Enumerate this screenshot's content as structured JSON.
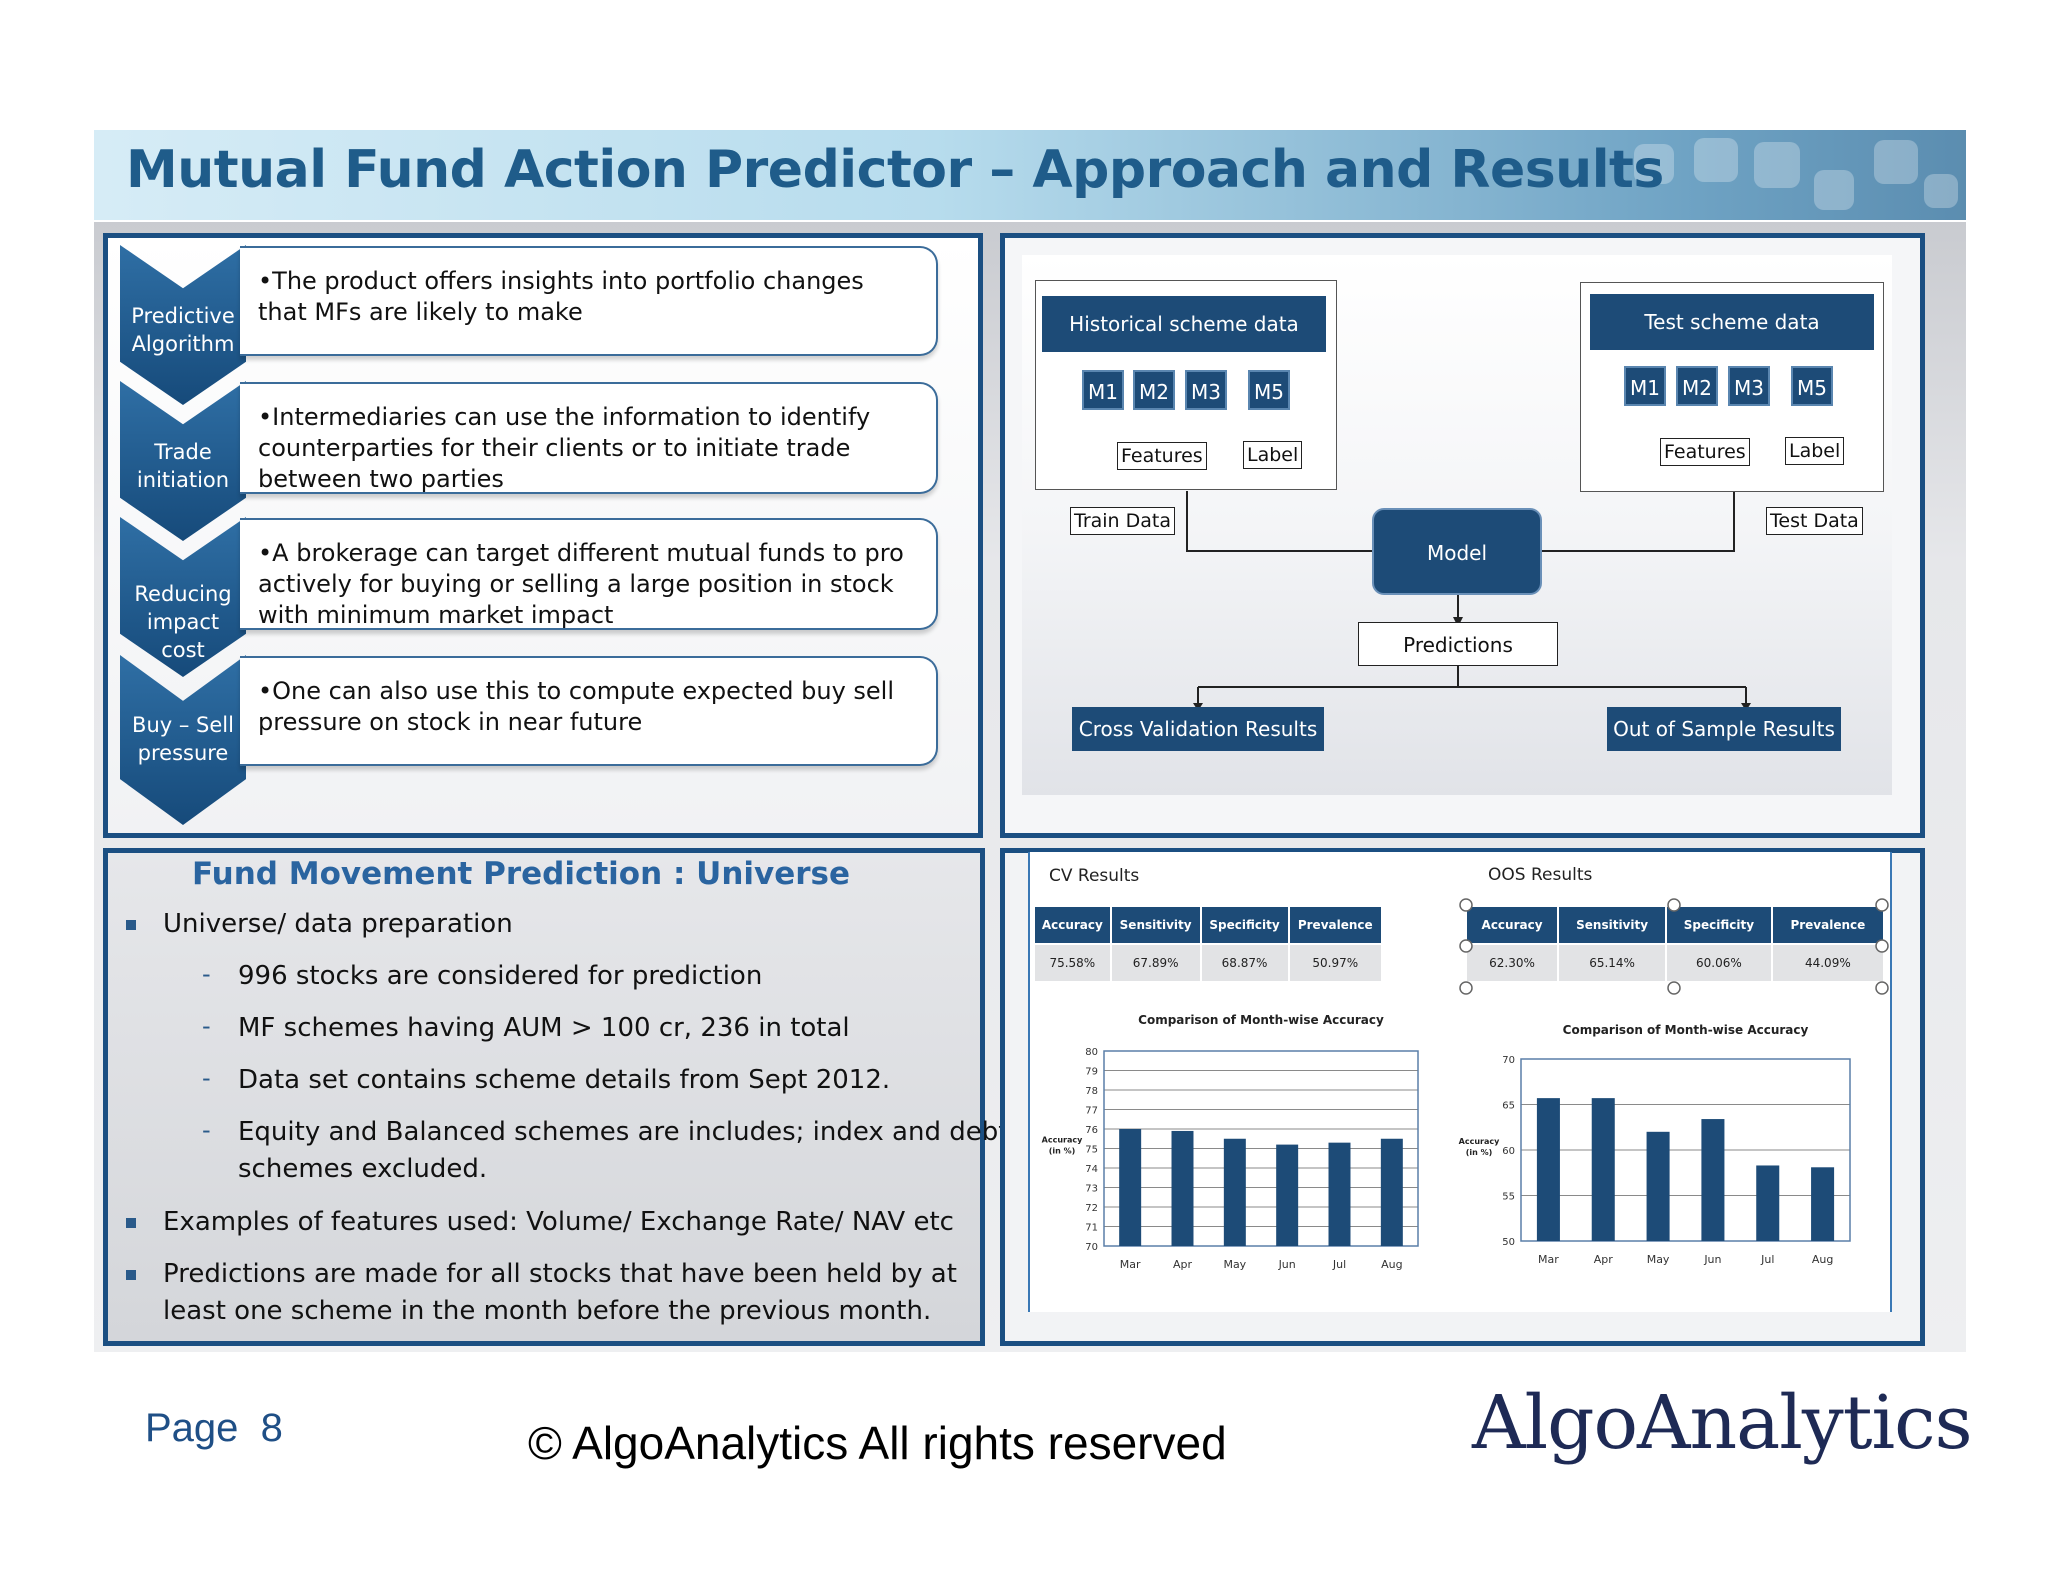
{
  "title": "Mutual Fund Action Predictor – Approach and Results",
  "approach": [
    {
      "label": [
        "Predictive",
        "Algorithm"
      ],
      "text": "•The product offers insights into portfolio changes that MFs are likely to make"
    },
    {
      "label": [
        "Trade",
        "initiation"
      ],
      "text": "•Intermediaries can use the information to identify counterparties for their clients or to initiate trade between two parties"
    },
    {
      "label": [
        "Reducing",
        "impact",
        "cost"
      ],
      "text": "•A brokerage can target different mutual funds to pro actively for buying or selling a large position in stock with minimum market impact"
    },
    {
      "label": [
        "Buy – Sell",
        "pressure"
      ],
      "text": "•One can also use this to compute expected buy sell pressure on stock in near future"
    }
  ],
  "diagram": {
    "historical": "Historical scheme data",
    "test": "Test scheme data",
    "m_left": [
      "M1",
      "M2",
      "M3"
    ],
    "m_right": "M5",
    "features": "Features",
    "label": "Label",
    "train_data": "Train Data",
    "test_data": "Test Data",
    "model": "Model",
    "predictions": "Predictions",
    "cv_results": "Cross Validation Results",
    "oos_results": "Out of Sample Results"
  },
  "universe": {
    "title": "Fund Movement Prediction : Universe",
    "b1": "Universe/ data preparation",
    "s1": "996 stocks are considered for prediction",
    "s2": "MF schemes having AUM > 100 cr, 236 in total",
    "s3": "Data set contains scheme details from Sept 2012.",
    "s4a": "Equity and Balanced schemes are includes; index and debt",
    "s4b": "schemes excluded.",
    "b2": "Examples of features used: Volume/ Exchange Rate/ NAV etc",
    "b3a": "Predictions are made for all stocks that have been held by at",
    "b3b": "least one scheme in the month before the previous month."
  },
  "results": {
    "headers": [
      "Accuracy",
      "Sensitivity",
      "Specificity",
      "Prevalence"
    ],
    "cv_title": "CV Results",
    "cv_values": [
      "75.58%",
      "67.89%",
      "68.87%",
      "50.97%"
    ],
    "oos_title": "OOS Results",
    "oos_values": [
      "62.30%",
      "65.14%",
      "60.06%",
      "44.09%"
    ]
  },
  "chart_data": [
    {
      "type": "bar",
      "title": "Comparison of Month-wise Accuracy",
      "ylabel": "Accuracy (in %)",
      "categories": [
        "Mar",
        "Apr",
        "May",
        "Jun",
        "Jul",
        "Aug"
      ],
      "values": [
        76.0,
        75.9,
        75.5,
        75.2,
        75.3,
        75.5
      ],
      "ylim": [
        70,
        80
      ],
      "yticks": [
        70,
        71,
        72,
        73,
        74,
        75,
        76,
        77,
        78,
        79,
        80
      ],
      "grid": true,
      "color": "#1d4b77"
    },
    {
      "type": "bar",
      "title": "Comparison of Month-wise Accuracy",
      "ylabel": "Accuracy (in %)",
      "categories": [
        "Mar",
        "Apr",
        "May",
        "Jun",
        "Jul",
        "Aug"
      ],
      "values": [
        65.7,
        65.7,
        62.0,
        63.4,
        58.3,
        58.1
      ],
      "ylim": [
        50,
        70
      ],
      "yticks": [
        50,
        55,
        60,
        65,
        70
      ],
      "grid": true,
      "color": "#1d4b77"
    }
  ],
  "footer": {
    "page_label": "Page",
    "page_number": "8",
    "copyright": "© AlgoAnalytics All rights reserved",
    "logo": "AlgoAnalytics"
  }
}
